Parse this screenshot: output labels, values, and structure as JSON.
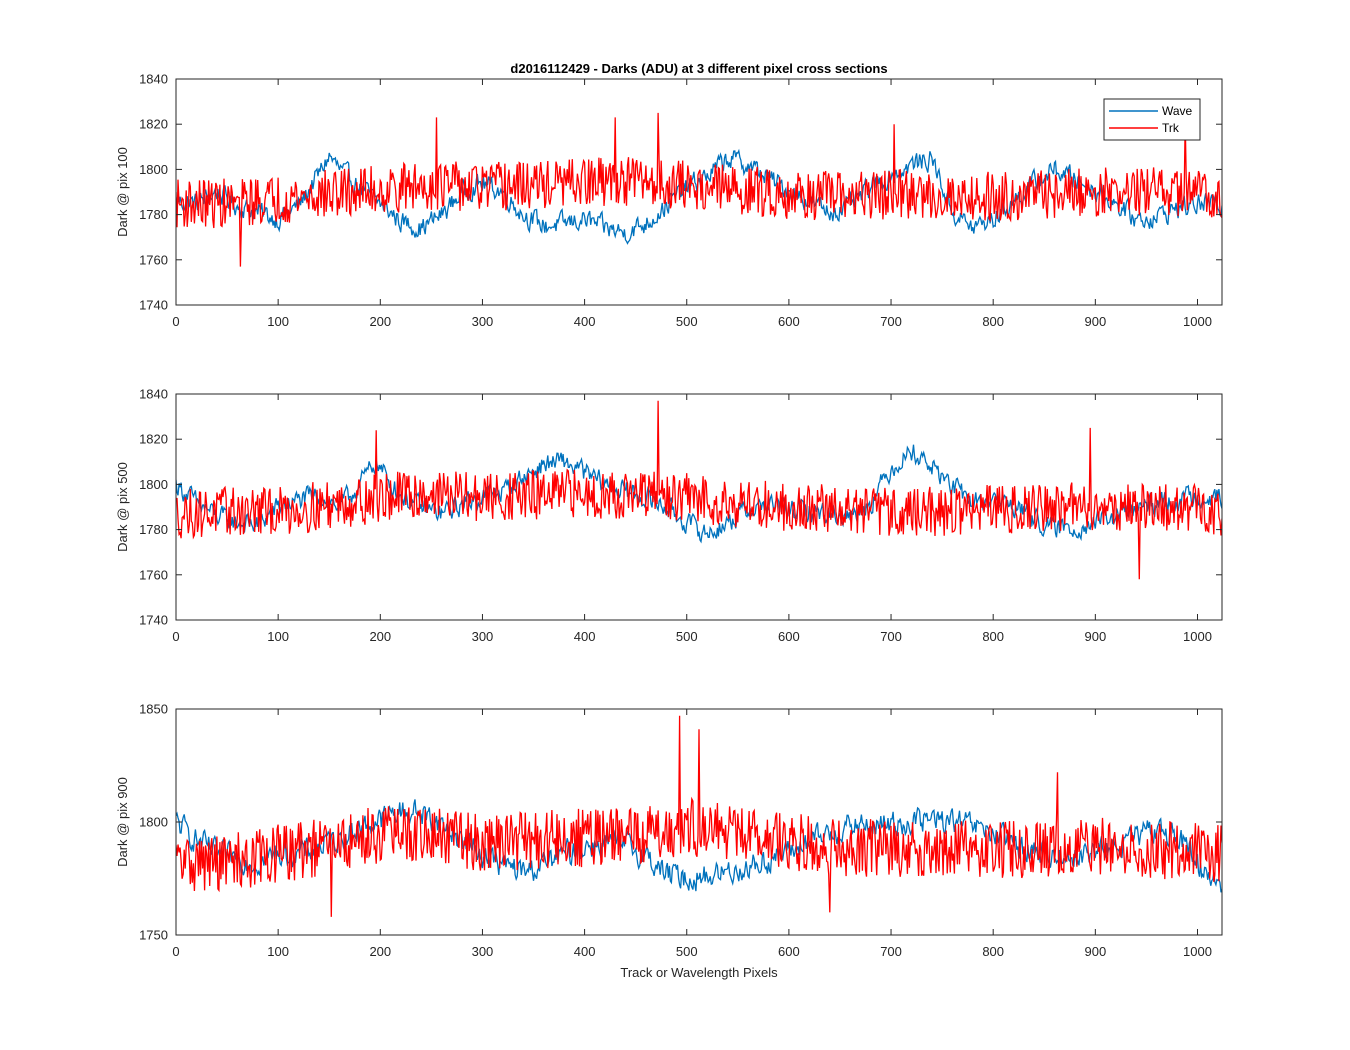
{
  "figure": {
    "title": "d2016112429 - Darks (ADU) at 3 different pixel cross sections",
    "xlabel": "Track or Wavelength Pixels"
  },
  "colors": {
    "Wave": "#0072bd",
    "Trk": "#ff0000"
  },
  "legend": {
    "placement": "top-right",
    "entries": [
      "Wave",
      "Trk"
    ]
  },
  "chart_data": [
    {
      "type": "line",
      "title": "d2016112429 - Darks (ADU) at 3 different pixel cross sections",
      "ylabel": "Dark @ pix 100",
      "xlabel": "",
      "xlim": [
        0,
        1024
      ],
      "ylim": [
        1740,
        1840
      ],
      "xticks": [
        0,
        100,
        200,
        300,
        400,
        500,
        600,
        700,
        800,
        900,
        1000
      ],
      "yticks": [
        1740,
        1760,
        1780,
        1800,
        1820,
        1840
      ],
      "legend": "top-right",
      "grid": false,
      "series": [
        {
          "name": "Wave",
          "x": [
            0,
            20,
            40,
            60,
            80,
            100,
            120,
            140,
            150,
            160,
            180,
            200,
            220,
            240,
            260,
            280,
            300,
            320,
            340,
            360,
            380,
            400,
            420,
            440,
            460,
            480,
            500,
            520,
            540,
            560,
            580,
            600,
            620,
            640,
            660,
            680,
            700,
            720,
            740,
            760,
            780,
            800,
            820,
            840,
            860,
            880,
            900,
            920,
            940,
            960,
            980,
            1000,
            1024
          ],
          "values": [
            1786,
            1785,
            1790,
            1784,
            1781,
            1778,
            1784,
            1798,
            1806,
            1800,
            1792,
            1785,
            1777,
            1774,
            1780,
            1790,
            1794,
            1790,
            1780,
            1775,
            1776,
            1778,
            1774,
            1772,
            1776,
            1784,
            1792,
            1797,
            1805,
            1802,
            1796,
            1791,
            1786,
            1781,
            1784,
            1792,
            1797,
            1802,
            1805,
            1781,
            1774,
            1778,
            1786,
            1794,
            1800,
            1796,
            1791,
            1785,
            1778,
            1779,
            1783,
            1785,
            1784
          ],
          "amplitude": 5
        },
        {
          "name": "Trk",
          "x": [
            0,
            50,
            100,
            150,
            200,
            250,
            300,
            350,
            400,
            450,
            500,
            550,
            600,
            650,
            700,
            750,
            800,
            850,
            900,
            950,
            1000,
            1024
          ],
          "values": [
            1785,
            1785,
            1787,
            1789,
            1791,
            1793,
            1792,
            1793,
            1794,
            1795,
            1793,
            1791,
            1789,
            1788,
            1789,
            1788,
            1788,
            1789,
            1790,
            1790,
            1790,
            1789
          ],
          "amplitude": 11,
          "peaks": [
            [
              63,
              1757
            ],
            [
              255,
              1823
            ],
            [
              430,
              1823
            ],
            [
              472,
              1825
            ],
            [
              703,
              1820
            ],
            [
              988,
              1822
            ]
          ]
        }
      ]
    },
    {
      "type": "line",
      "title": "",
      "ylabel": "Dark @ pix 500",
      "xlabel": "",
      "xlim": [
        0,
        1024
      ],
      "ylim": [
        1740,
        1840
      ],
      "xticks": [
        0,
        100,
        200,
        300,
        400,
        500,
        600,
        700,
        800,
        900,
        1000
      ],
      "yticks": [
        1740,
        1760,
        1780,
        1800,
        1820,
        1840
      ],
      "grid": false,
      "series": [
        {
          "name": "Wave",
          "x": [
            0,
            20,
            40,
            60,
            80,
            100,
            120,
            140,
            160,
            180,
            195,
            220,
            240,
            260,
            280,
            300,
            320,
            340,
            360,
            380,
            400,
            420,
            440,
            460,
            480,
            500,
            520,
            540,
            560,
            580,
            600,
            620,
            640,
            660,
            680,
            700,
            720,
            740,
            760,
            780,
            800,
            820,
            840,
            860,
            880,
            900,
            920,
            940,
            960,
            980,
            1000,
            1024
          ],
          "values": [
            1800,
            1792,
            1786,
            1783,
            1782,
            1790,
            1793,
            1795,
            1790,
            1800,
            1810,
            1795,
            1790,
            1787,
            1791,
            1795,
            1797,
            1803,
            1809,
            1810,
            1805,
            1800,
            1797,
            1794,
            1790,
            1783,
            1778,
            1783,
            1789,
            1791,
            1789,
            1788,
            1787,
            1786,
            1792,
            1807,
            1815,
            1808,
            1799,
            1792,
            1793,
            1791,
            1785,
            1780,
            1781,
            1783,
            1786,
            1789,
            1791,
            1793,
            1795,
            1794
          ],
          "amplitude": 5
        },
        {
          "name": "Trk",
          "x": [
            0,
            50,
            100,
            150,
            200,
            250,
            300,
            350,
            400,
            450,
            500,
            550,
            600,
            650,
            700,
            750,
            800,
            850,
            900,
            950,
            1000,
            1024
          ],
          "values": [
            1787,
            1788,
            1788,
            1791,
            1794,
            1796,
            1794,
            1795,
            1796,
            1795,
            1794,
            1792,
            1790,
            1789,
            1788,
            1788,
            1789,
            1790,
            1790,
            1790,
            1789,
            1788
          ],
          "amplitude": 11,
          "peaks": [
            [
              196,
              1824
            ],
            [
              472,
              1837
            ],
            [
              895,
              1825
            ],
            [
              943,
              1758
            ]
          ]
        }
      ]
    },
    {
      "type": "line",
      "title": "",
      "ylabel": "Dark @ pix 900",
      "xlabel": "Track or Wavelength Pixels",
      "xlim": [
        0,
        1024
      ],
      "ylim": [
        1750,
        1850
      ],
      "xticks": [
        0,
        100,
        200,
        300,
        400,
        500,
        600,
        700,
        800,
        900,
        1000
      ],
      "yticks": [
        1750,
        1800,
        1850
      ],
      "grid": false,
      "series": [
        {
          "name": "Wave",
          "x": [
            0,
            20,
            40,
            60,
            80,
            100,
            120,
            140,
            160,
            180,
            200,
            220,
            240,
            260,
            280,
            300,
            320,
            340,
            360,
            380,
            400,
            420,
            440,
            460,
            480,
            500,
            520,
            540,
            560,
            580,
            600,
            620,
            640,
            660,
            680,
            700,
            720,
            740,
            760,
            780,
            800,
            820,
            840,
            860,
            880,
            900,
            920,
            940,
            960,
            980,
            1000,
            1024
          ],
          "values": [
            1800,
            1792,
            1786,
            1784,
            1782,
            1786,
            1786,
            1789,
            1793,
            1797,
            1801,
            1805,
            1804,
            1799,
            1792,
            1786,
            1781,
            1778,
            1781,
            1786,
            1789,
            1791,
            1790,
            1785,
            1777,
            1775,
            1776,
            1778,
            1780,
            1783,
            1787,
            1791,
            1795,
            1798,
            1798,
            1799,
            1800,
            1801,
            1800,
            1798,
            1795,
            1790,
            1787,
            1785,
            1785,
            1787,
            1789,
            1793,
            1797,
            1795,
            1781,
            1773
          ],
          "amplitude": 6
        },
        {
          "name": "Trk",
          "x": [
            0,
            50,
            100,
            150,
            200,
            250,
            300,
            350,
            400,
            450,
            500,
            550,
            600,
            650,
            700,
            750,
            800,
            850,
            900,
            950,
            1000,
            1024
          ],
          "values": [
            1782,
            1782,
            1786,
            1789,
            1795,
            1794,
            1791,
            1792,
            1793,
            1794,
            1798,
            1795,
            1791,
            1789,
            1788,
            1788,
            1788,
            1788,
            1789,
            1788,
            1787,
            1786
          ],
          "amplitude": 13,
          "peaks": [
            [
              152,
              1758
            ],
            [
              493,
              1847
            ],
            [
              512,
              1841
            ],
            [
              640,
              1760
            ],
            [
              863,
              1822
            ]
          ]
        }
      ]
    }
  ]
}
